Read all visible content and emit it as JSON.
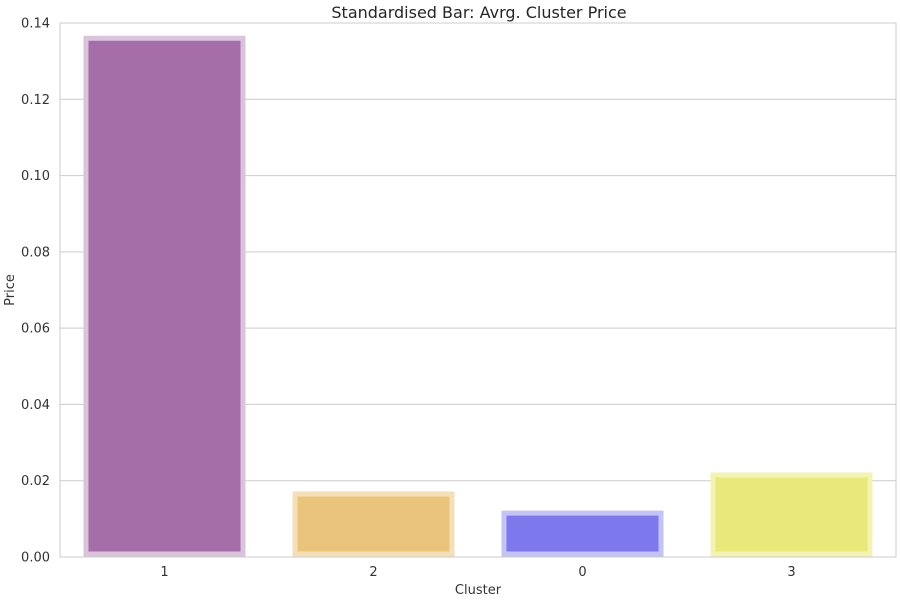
{
  "chart_data": {
    "type": "bar",
    "title": "Standardised Bar: Avrg. Cluster Price",
    "xlabel": "Cluster",
    "ylabel": "Price",
    "categories": [
      "1",
      "2",
      "0",
      "3"
    ],
    "values": [
      0.136,
      0.0165,
      0.0115,
      0.0215
    ],
    "ylim": [
      0,
      0.14
    ],
    "yticks": [
      "0.00",
      "0.02",
      "0.04",
      "0.06",
      "0.08",
      "0.10",
      "0.12",
      "0.14"
    ],
    "colors": [
      "#a66ea8",
      "#ebc47b",
      "#7b79ec",
      "#e8e97a"
    ],
    "edge_colors": [
      "#d9c4dc",
      "#f5dfb8",
      "#c4c3f5",
      "#f3f3b6"
    ],
    "grid": true,
    "legend": "none"
  }
}
